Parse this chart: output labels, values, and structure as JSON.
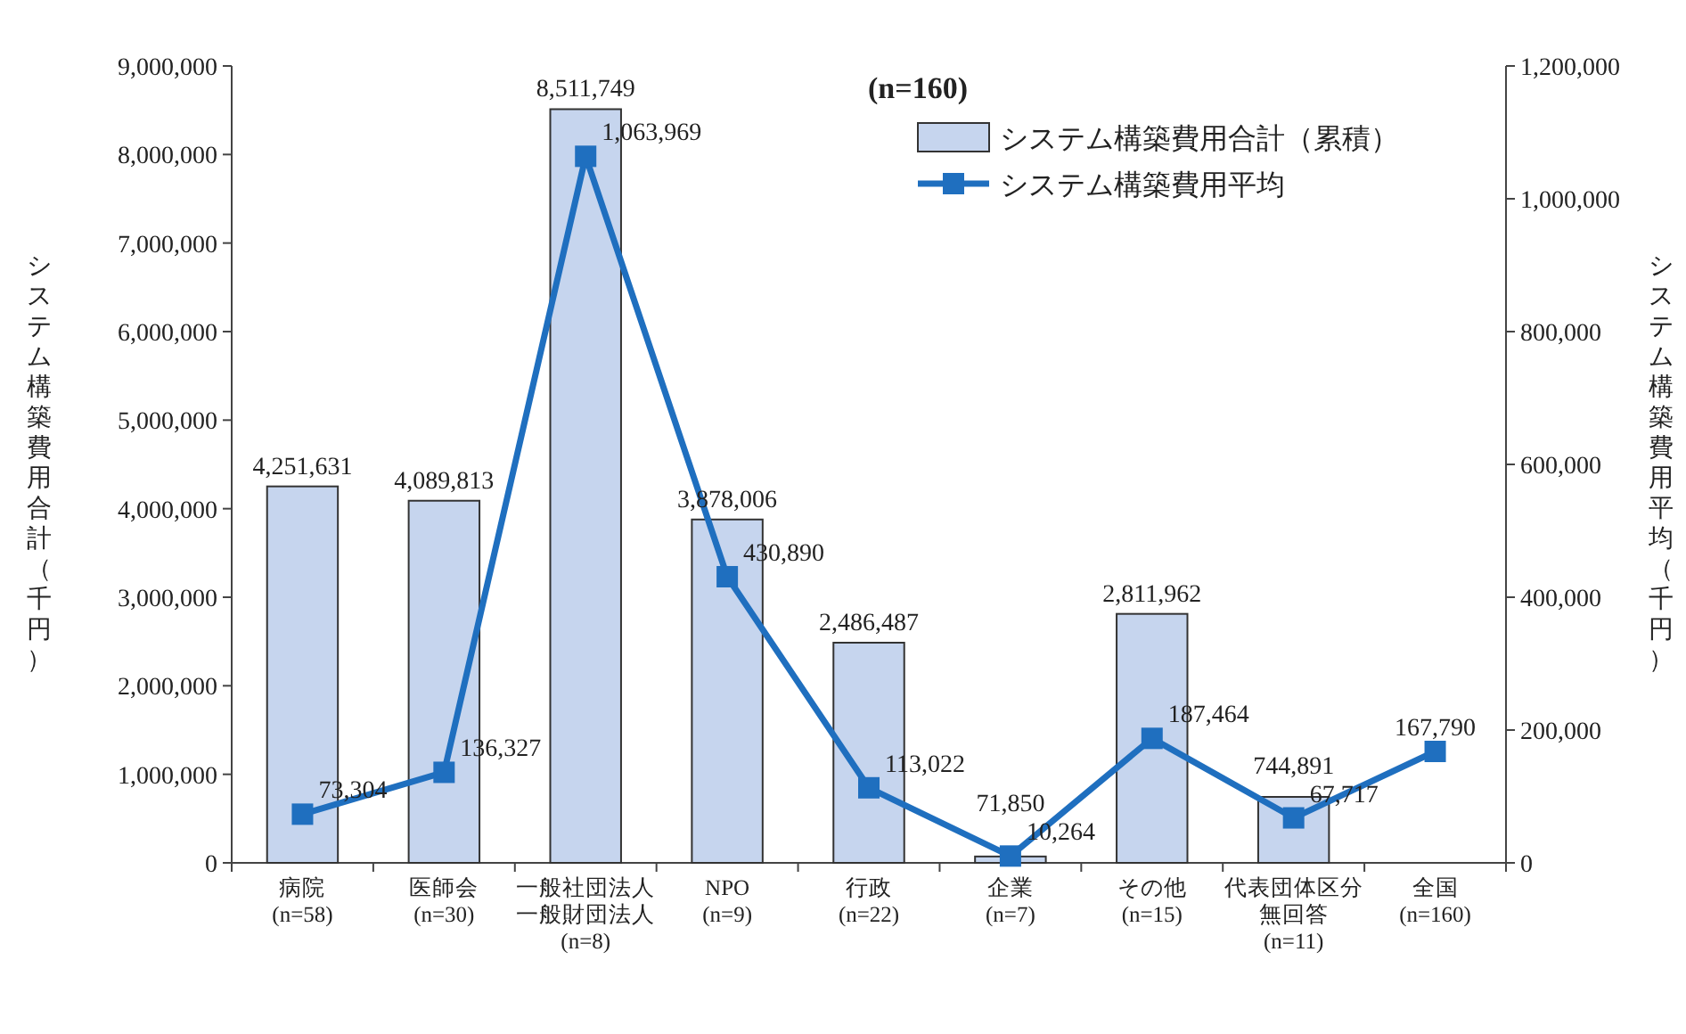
{
  "chart_data": {
    "type": "bar",
    "annotations": [
      "(n=160)"
    ],
    "ylabel": "システム構築費用合計（千円）",
    "y2label": "システム構築費用平均（千円）",
    "categories": [
      "病院(n=58)",
      "医師会(n=30)",
      "一般社団法人一般財団法人(n=8)",
      "NPO(n=9)",
      "行政(n=22)",
      "企業(n=7)",
      "その他(n=15)",
      "代表団体区分無回答(n=11)",
      "全国(n=160)"
    ],
    "series": [
      {
        "name": "システム構築費用合計（累積）",
        "color": "#c6d5ee",
        "values": [
          4251631,
          4089813,
          8511749,
          3878006,
          2486487,
          71850,
          2811962,
          744891,
          null
        ],
        "value_labels": [
          "4,251,631",
          "4,089,813",
          "8,511,749",
          "3,878,006",
          "2,486,487",
          "71,850",
          "2,811,962",
          "744,891",
          null
        ]
      },
      {
        "name": "システム構築費用平均",
        "type": "line",
        "axis": "y2",
        "color": "#1f6fbf",
        "marker": "square",
        "values": [
          73304,
          136327,
          1063969,
          430890,
          113022,
          10264,
          187464,
          67717,
          167790
        ],
        "value_labels": [
          "73,304",
          "136,327",
          "1,063,969",
          "430,890",
          "113,022",
          "10,264",
          "187,464",
          "67,717",
          "167,790"
        ]
      }
    ],
    "ylim": [
      0,
      9000000
    ],
    "yticks": [
      {
        "value": 0,
        "label": "0"
      },
      {
        "value": 1000000,
        "label": "1,000,000"
      },
      {
        "value": 2000000,
        "label": "2,000,000"
      },
      {
        "value": 3000000,
        "label": "3,000,000"
      },
      {
        "value": 4000000,
        "label": "4,000,000"
      },
      {
        "value": 5000000,
        "label": "5,000,000"
      },
      {
        "value": 6000000,
        "label": "6,000,000"
      },
      {
        "value": 7000000,
        "label": "7,000,000"
      },
      {
        "value": 8000000,
        "label": "8,000,000"
      },
      {
        "value": 9000000,
        "label": "9,000,000"
      }
    ],
    "y2lim": [
      0,
      1200000
    ],
    "y2ticks": [
      {
        "value": 0,
        "label": "0"
      },
      {
        "value": 200000,
        "label": "200,000"
      },
      {
        "value": 400000,
        "label": "400,000"
      },
      {
        "value": 600000,
        "label": "600,000"
      },
      {
        "value": 800000,
        "label": "800,000"
      },
      {
        "value": 1000000,
        "label": "1,000,000"
      },
      {
        "value": 1200000,
        "label": "1,200,000"
      }
    ],
    "legend": "top right",
    "grid": false
  }
}
